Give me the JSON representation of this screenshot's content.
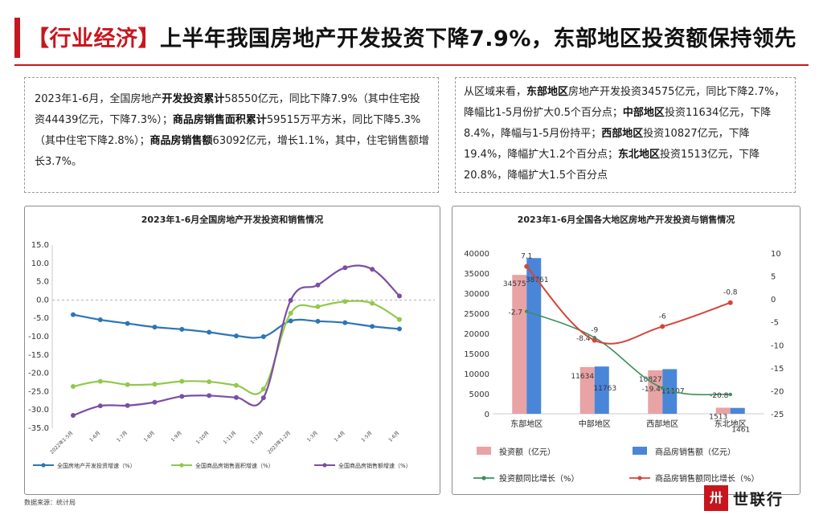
{
  "header": {
    "tag": "【行业经济】",
    "title": "上半年我国房地产开发投资下降7.9%，东部地区投资额保持领先"
  },
  "box_left": {
    "segments": [
      {
        "t": "2023年1-6月，全国房地产",
        "b": false
      },
      {
        "t": "开发投资累计",
        "b": true
      },
      {
        "t": "58550亿元，同比下降7.9%（其中住宅投资44439亿元，下降7.3%）；",
        "b": false
      },
      {
        "t": "商品房销售面积累计",
        "b": true
      },
      {
        "t": "59515万平方米，同比下降5.3%（其中住宅下降2.8%）；",
        "b": false
      },
      {
        "t": "商品房销售额",
        "b": true
      },
      {
        "t": "63092亿元，增长1.1%，其中，住宅销售额增长3.7%。",
        "b": false
      }
    ]
  },
  "box_right": {
    "segments": [
      {
        "t": "从区域来看，",
        "b": false
      },
      {
        "t": "东部地区",
        "b": true
      },
      {
        "t": "房地产开发投资34575亿元，同比下降2.7%，降幅比1-5月份扩大0.5个百分点；",
        "b": false
      },
      {
        "t": "中部地区",
        "b": true
      },
      {
        "t": "投资11634亿元，下降8.4%，降幅与1-5月份持平；",
        "b": false
      },
      {
        "t": "西部地区",
        "b": true
      },
      {
        "t": "投资10827亿元，下降19.4%，降幅扩大1.2个百分点；",
        "b": false
      },
      {
        "t": "东北地区",
        "b": true
      },
      {
        "t": "投资1513亿元，下降20.8%，降幅扩大1.5个百分点",
        "b": false
      }
    ]
  },
  "source": "数据来源：统计局",
  "logo": {
    "mark": "卅",
    "name": "世联行"
  },
  "colors": {
    "brand_red": "#c8161e"
  },
  "chart_data": [
    {
      "type": "line",
      "title": "2023年1-6月全国房地产开发投资和销售情况",
      "x": [
        "2022年1-5月",
        "1-6月",
        "1-7月",
        "1-8月",
        "1-9月",
        "1-10月",
        "1-11月",
        "1-12月",
        "2023年1-2月",
        "1-3月",
        "1-4月",
        "1-5月",
        "1-6月"
      ],
      "ylim": [
        -35,
        15
      ],
      "yticks": [
        15.0,
        10.0,
        5.0,
        0.0,
        -5.0,
        -10.0,
        -15.0,
        -20.0,
        -25.0,
        -30.0,
        -35.0
      ],
      "legend_position": "bottom",
      "grid": false,
      "series": [
        {
          "name": "全国房地产开发投资增速（%）",
          "color": "#2e75b6",
          "values": [
            -4.0,
            -5.4,
            -6.4,
            -7.4,
            -8.0,
            -8.8,
            -9.8,
            -10.0,
            -5.7,
            -5.8,
            -6.2,
            -7.2,
            -7.9
          ]
        },
        {
          "name": "全国商品房销售面积增速（%）",
          "color": "#92c94b",
          "values": [
            -23.6,
            -22.2,
            -23.1,
            -23.0,
            -22.2,
            -22.3,
            -23.3,
            -24.3,
            -3.6,
            -1.8,
            -0.4,
            -0.9,
            -5.3
          ]
        },
        {
          "name": "全国商品房销售额增速（%）",
          "color": "#7b4ea3",
          "values": [
            -31.5,
            -28.9,
            -28.8,
            -27.9,
            -26.3,
            -26.1,
            -26.6,
            -26.7,
            -0.1,
            4.1,
            8.8,
            8.4,
            1.1
          ]
        }
      ]
    },
    {
      "type": "bar",
      "title": "2023年1-6月全国各大地区房地产开发投资与销售情况",
      "categories": [
        "东部地区",
        "中部地区",
        "西部地区",
        "东北地区"
      ],
      "ylim": [
        0,
        40000
      ],
      "yticks": [
        40000,
        35000,
        30000,
        25000,
        20000,
        15000,
        10000,
        5000,
        0
      ],
      "ylim_right": [
        -25,
        10
      ],
      "yticks_right": [
        10,
        5,
        0,
        -5,
        -10,
        -15,
        -20,
        -25
      ],
      "legend_position": "bottom",
      "series": [
        {
          "name": "投资额（亿元）",
          "color": "#e8a3a5",
          "axis": "left",
          "values": [
            34575,
            11634,
            10827,
            1513
          ]
        },
        {
          "name": "商品房销售额（亿元）",
          "color": "#4a86d8",
          "axis": "left",
          "values": [
            38761,
            11763,
            11107,
            1461
          ]
        },
        {
          "name": "投资额同比增长（%）",
          "color": "#3a9060",
          "axis": "right",
          "type": "line",
          "values": [
            -2.7,
            -8.4,
            -19.4,
            -20.8
          ]
        },
        {
          "name": "商品房销售额同比增长（%）",
          "color": "#d2463c",
          "axis": "right",
          "type": "line",
          "values": [
            7.1,
            -9,
            -6,
            -0.8
          ]
        }
      ]
    }
  ]
}
